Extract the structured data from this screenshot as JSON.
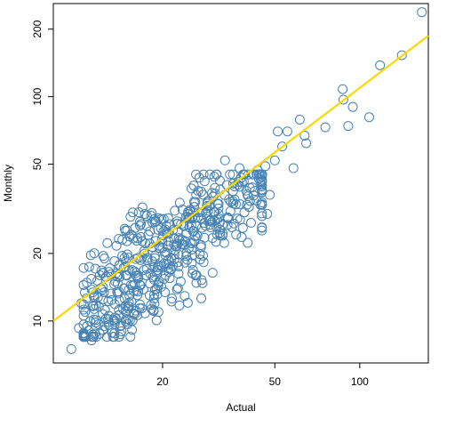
{
  "chart_data": {
    "type": "scatter",
    "title": "",
    "xlabel": "Actual",
    "ylabel": "Monthly",
    "x_scale": "log",
    "y_scale": "log",
    "xlim": [
      8.2,
      175
    ],
    "ylim": [
      6.5,
      260
    ],
    "x_ticks": [
      20,
      50,
      100
    ],
    "y_ticks": [
      10,
      20,
      50,
      100,
      200
    ],
    "grid": false,
    "legend": "none",
    "point_color": "#4682B4",
    "line_color": "#FFD700",
    "fit_line": {
      "name": "",
      "points": [
        [
          8.2,
          10.0
        ],
        [
          175,
          187
        ]
      ]
    },
    "series": [
      {
        "name": "",
        "points": [
          [
            9.5,
            7.5
          ],
          [
            10.3,
            12.0
          ],
          [
            10.1,
            9.3
          ],
          [
            11.2,
            8.2
          ],
          [
            10.8,
            9.5
          ],
          [
            11.6,
            10.1
          ],
          [
            12.2,
            13.8
          ],
          [
            13.5,
            18.5
          ],
          [
            14.8,
            18.5
          ],
          [
            13.0,
            17.2
          ],
          [
            12.5,
            11.2
          ],
          [
            13.5,
            8.8
          ],
          [
            14.3,
            9.0
          ],
          [
            16.0,
            26.0
          ],
          [
            16.7,
            14.4
          ],
          [
            17.1,
            13.8
          ],
          [
            18.2,
            11.8
          ],
          [
            19.5,
            21.2
          ],
          [
            20.2,
            28.5
          ],
          [
            21.6,
            12.6
          ],
          [
            22.1,
            31.0
          ],
          [
            23.5,
            23.0
          ],
          [
            24.6,
            30.0
          ],
          [
            25.5,
            22.2
          ],
          [
            26.3,
            36.5
          ],
          [
            27.2,
            18.8
          ],
          [
            28.2,
            42.0
          ],
          [
            29.3,
            32.5
          ],
          [
            30.6,
            28.0
          ],
          [
            31.1,
            45.0
          ],
          [
            32.6,
            24.0
          ],
          [
            33.3,
            52.0
          ],
          [
            35.6,
            41.0
          ],
          [
            37.5,
            48.0
          ],
          [
            38.5,
            26.0
          ],
          [
            40.2,
            36.0
          ],
          [
            41.9,
            45.0
          ],
          [
            44.4,
            33.0
          ],
          [
            46.3,
            49.0
          ],
          [
            48.0,
            36.5
          ],
          [
            50.0,
            52.0
          ],
          [
            51.2,
            70.0
          ],
          [
            53.1,
            60.0
          ],
          [
            55.4,
            70.0
          ],
          [
            58.2,
            48.0
          ],
          [
            61.3,
            79.0
          ],
          [
            63.8,
            67.0
          ],
          [
            64.6,
            62.0
          ],
          [
            75.5,
            73.0
          ],
          [
            87.0,
            108.0
          ],
          [
            87.5,
            97.0
          ],
          [
            91.0,
            74.0
          ],
          [
            94.5,
            90.0
          ],
          [
            108.0,
            81.0
          ],
          [
            118.0,
            138.0
          ],
          [
            141.0,
            153.0
          ],
          [
            166.0,
            238.0
          ],
          [
            14.0,
            13.5
          ],
          [
            15.5,
            12.2
          ],
          [
            17.5,
            16.0
          ],
          [
            18.6,
            17.3
          ],
          [
            19.8,
            14.2
          ],
          [
            21.5,
            19.0
          ],
          [
            22.8,
            17.5
          ],
          [
            24.3,
            20.1
          ],
          [
            25.6,
            25.2
          ],
          [
            27.4,
            21.8
          ],
          [
            28.8,
            33.4
          ],
          [
            30.2,
            35.8
          ],
          [
            34.0,
            29.0
          ],
          [
            36.4,
            33.1
          ],
          [
            39.0,
            30.5
          ],
          [
            42.5,
            38.0
          ],
          [
            45.0,
            42.0
          ],
          [
            47.0,
            30.0
          ],
          [
            16.4,
            15.5
          ],
          [
            18.0,
            13.0
          ],
          [
            19.0,
            16.5
          ],
          [
            20.5,
            16.0
          ],
          [
            23.2,
            15.0
          ],
          [
            26.4,
            16.0
          ],
          [
            20.0,
            22.5
          ],
          [
            21.0,
            24.5
          ],
          [
            22.3,
            21.5
          ],
          [
            23.8,
            26.5
          ],
          [
            25.0,
            28.6
          ],
          [
            26.8,
            30.5
          ],
          [
            17.2,
            20.5
          ],
          [
            15.2,
            16.8
          ],
          [
            14.6,
            14.0
          ],
          [
            13.2,
            12.4
          ],
          [
            12.8,
            10.2
          ],
          [
            11.9,
            11.6
          ],
          [
            16.9,
            11.4
          ],
          [
            18.8,
            19.5
          ],
          [
            29.6,
            26.2
          ],
          [
            32.0,
            38.5
          ],
          [
            34.9,
            34.0
          ],
          [
            36.9,
            40.5
          ],
          [
            38.0,
            43.5
          ],
          [
            40.8,
            39.2
          ],
          [
            43.4,
            47.0
          ],
          [
            12.0,
            16.0
          ],
          [
            13.8,
            15.8
          ],
          [
            15.0,
            19.8
          ],
          [
            16.2,
            22.8
          ],
          [
            17.8,
            24.2
          ],
          [
            19.3,
            25.5
          ],
          [
            21.2,
            27.0
          ],
          [
            15.8,
            10.8
          ],
          [
            14.0,
            11.2
          ],
          [
            24.0,
            18.2
          ]
        ]
      }
    ]
  }
}
